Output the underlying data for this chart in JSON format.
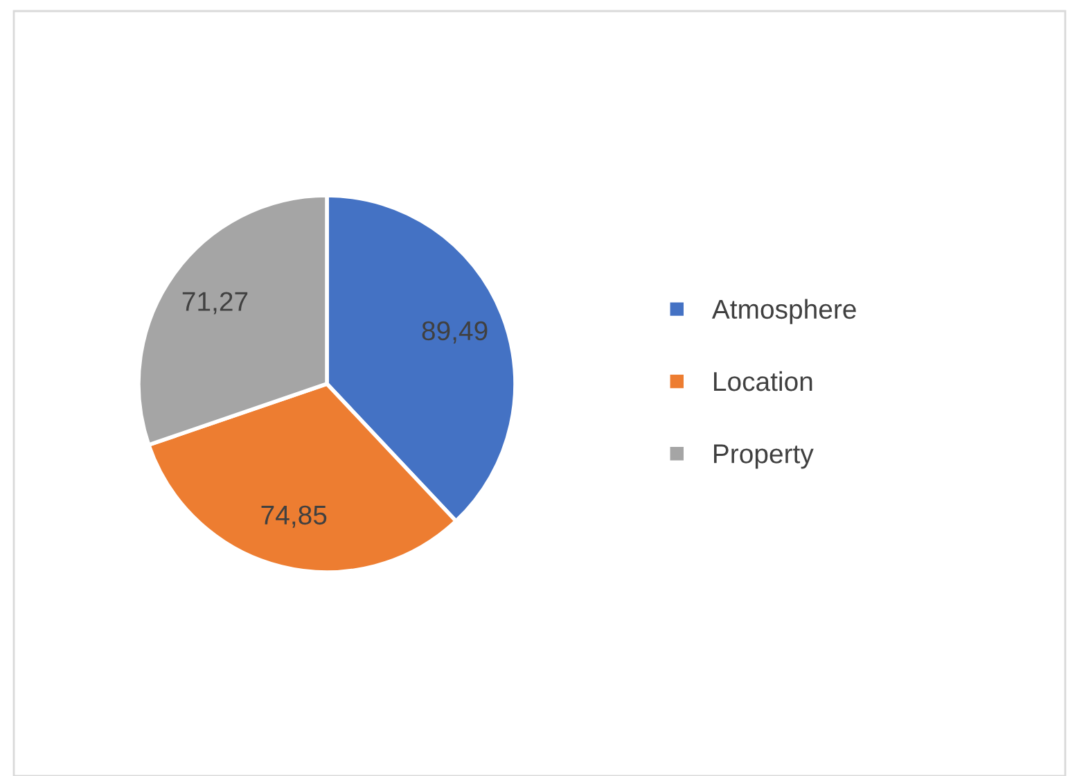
{
  "chart_data": {
    "type": "pie",
    "categories": [
      "Atmosphere",
      "Location",
      "Property"
    ],
    "values": [
      89.49,
      74.85,
      71.27
    ],
    "value_labels": [
      "89,49",
      "74,85",
      "71,27"
    ],
    "colors": [
      "#4472c4",
      "#ed7d31",
      "#a5a5a5"
    ],
    "legend": "right"
  }
}
